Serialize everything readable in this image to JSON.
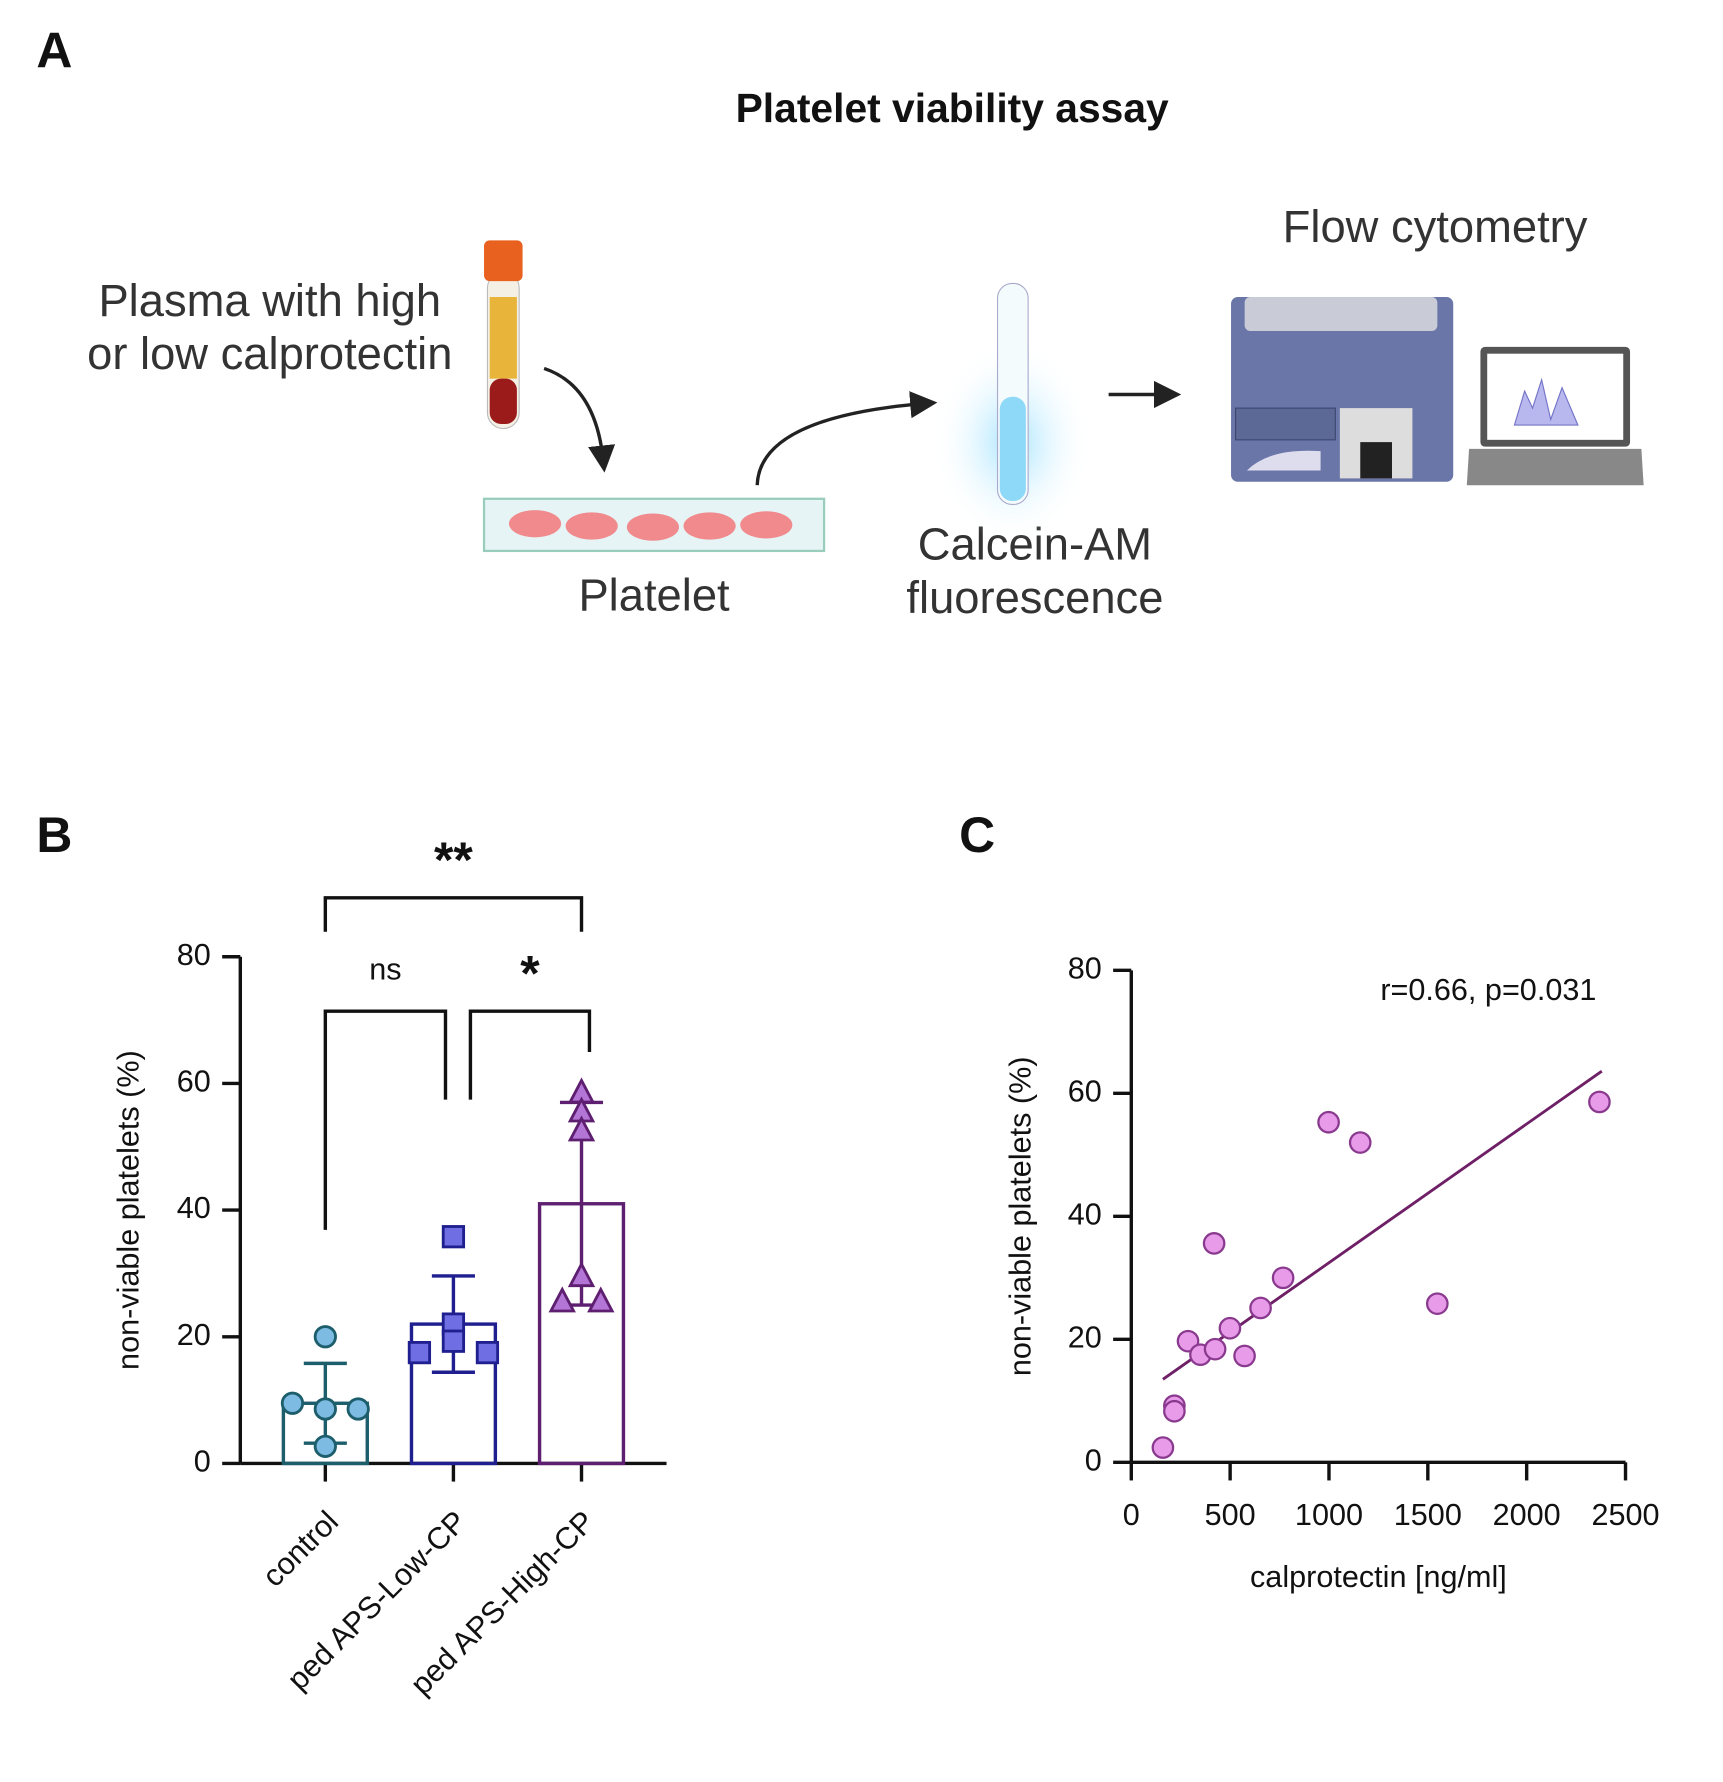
{
  "panel_labels": [
    "A",
    "B",
    "C"
  ],
  "diagram": {
    "title": "Platelet viability assay",
    "steps": [
      {
        "label": [
          "Plasma with high",
          "or low calprotectin"
        ]
      },
      {
        "label": [
          "Platelet"
        ]
      },
      {
        "label": [
          "Calcein-AM",
          "fluorescence"
        ]
      },
      {
        "label": [
          "Flow cytometry"
        ]
      }
    ]
  },
  "chart_data": [
    {
      "type": "bar",
      "y_label": "non-viable platelets (%)",
      "categories": [
        "control",
        "ped APS-Low-CP",
        "ped APS-High-CP"
      ],
      "values": [
        9.5,
        22,
        41
      ],
      "errors": [
        6.3,
        7.6,
        16
      ],
      "points": [
        [
          20,
          9.5,
          8.6,
          8.6,
          2.7
        ],
        [
          35.8,
          17.5,
          22,
          17.5,
          19.3
        ],
        [
          58.5,
          55.5,
          52.5,
          29.5,
          25.5,
          25.5
        ]
      ],
      "colors": [
        "#1d5e6c",
        "#1f1f8f",
        "#5e1f70"
      ],
      "point_colors": [
        "#7dbbe3",
        "#6f6fe3",
        "#b476d6"
      ],
      "markers": [
        "circle",
        "square",
        "triangle"
      ],
      "comparisons": [
        {
          "groups": [
            0,
            2
          ],
          "label": "**"
        },
        {
          "groups": [
            0,
            1
          ],
          "label": "ns"
        },
        {
          "groups": [
            1,
            2
          ],
          "label": "*"
        }
      ],
      "ylim": [
        0,
        80
      ],
      "yticks": [
        0,
        20,
        40,
        60,
        80
      ]
    },
    {
      "type": "scatter",
      "x_label": "calprotectin [ng/ml]",
      "y_label": "non-viable platelets (%)",
      "annotation": "r=0.66, p=0.031",
      "x": [
        160,
        218,
        218,
        287,
        350,
        424,
        419,
        499,
        573,
        654,
        768,
        998,
        1158,
        1548,
        2368
      ],
      "y": [
        2.4,
        9.2,
        8.3,
        19.7,
        17.5,
        18.4,
        35.6,
        21.8,
        17.3,
        25.1,
        30.0,
        55.3,
        52.0,
        25.8,
        58.6
      ],
      "color": "#e79be8",
      "edge_color": "#8a3a8e",
      "fit_line": {
        "x": [
          160,
          2380
        ],
        "y": [
          13.5,
          63.6
        ],
        "color": "#6e1f66"
      },
      "xlim": [
        0,
        2500
      ],
      "xticks": [
        0,
        500,
        1000,
        1500,
        2000,
        2500
      ],
      "ylim": [
        0,
        80
      ],
      "yticks": [
        0,
        20,
        40,
        60,
        80
      ]
    }
  ]
}
